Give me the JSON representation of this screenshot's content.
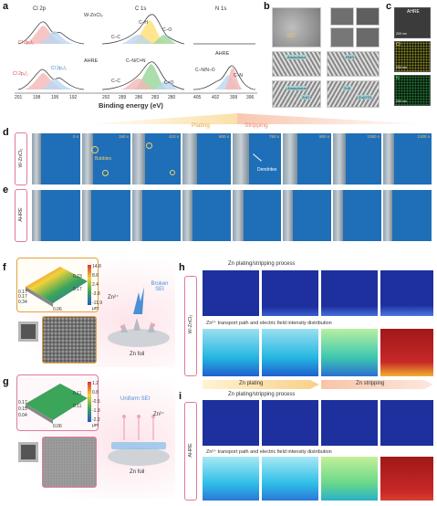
{
  "panels": {
    "a": {
      "letter": "a",
      "subtitles": [
        "Cl 2p",
        "C 1s",
        "N 1s"
      ],
      "sample_top": "W-ZnCl₂",
      "sample_bottom": "AHRE",
      "peaks_cl_top": [
        "Cl 2p₃/₂"
      ],
      "peaks_cl_bottom": [
        "Cl 2p₁/₂",
        "Cl 2p₃/₂"
      ],
      "peaks_c_top": [
        "C–C",
        "C–H",
        "C–O"
      ],
      "peaks_c_bottom": [
        "C–N/C=N",
        "C–C",
        "C=O"
      ],
      "peaks_n": [
        "C–N/N–O",
        "C–N"
      ],
      "ticks_cl": [
        "201",
        "198",
        "195",
        "192"
      ],
      "ticks_c": [
        "292",
        "289",
        "286",
        "283",
        "280"
      ],
      "ticks_n": [
        "405",
        "402",
        "399",
        "396"
      ],
      "xlabel": "Binding energy (eV)"
    },
    "b": {
      "letter": "b",
      "sei_label": "SEI",
      "boxes": [
        "Amorphous",
        "RMS",
        "Amorphous",
        "ZnS",
        "ZnO",
        "Zn(OTf)"
      ]
    },
    "c": {
      "letter": "c",
      "title": "AHRE",
      "scales": [
        "200 nm",
        "200 nm",
        "200 nm"
      ],
      "elements": [
        "Cl",
        "N"
      ]
    },
    "d": {
      "letter": "d",
      "side": "W-ZnCl₂",
      "plating": "Plating",
      "stripping": "Stripping",
      "times": [
        "0 s",
        "150 s",
        "410 s",
        "600 s",
        "750 s",
        "900 s",
        "1050 s",
        "1200 s"
      ],
      "bubbles": "Bubbles",
      "dendrites": "Dendrites"
    },
    "e": {
      "letter": "e",
      "side": "AHRE"
    },
    "f": {
      "letter": "f",
      "zticks": [
        "14.8",
        "8.6",
        "2.4",
        "-3.8",
        "-11.9"
      ],
      "zunit": "μm",
      "axes": [
        "0.34",
        "0.17",
        "0.23",
        "0.06",
        "0.17",
        "0.17"
      ],
      "ion": "Zn²⁺",
      "sei": "Broken SEI",
      "foil": "Zn foil"
    },
    "g": {
      "letter": "g",
      "zticks": [
        "1.2",
        "0.8",
        "-0.5",
        "-1.3",
        "-2.2"
      ],
      "zunit": "μm",
      "axes": [
        "0.17",
        "0.15",
        "0.11",
        "0.06",
        "0.04",
        "0.11"
      ],
      "ion": "Zn²⁺",
      "sei": "Uniform SEI",
      "foil": "Zn foil"
    },
    "h": {
      "letter": "h",
      "side": "W-ZnCl₂",
      "row1_title": "Zn plating/stripping process",
      "row2_title": "Zn²⁺ transport path and electric field intensity distribution",
      "arrow_left": "Zn plating",
      "arrow_right": "Zn stripping"
    },
    "i": {
      "letter": "i",
      "side": "AHRE",
      "row1_title": "Zn plating/stripping process",
      "row2_title": "Zn²⁺ transport path and electric field intensity distribution"
    }
  },
  "colors": {
    "electrolyte_blue": "#1f6fb8",
    "sim_dark": "#1e2f9e",
    "accent_orange": "#f2a541",
    "accent_pink": "#e07aa0"
  }
}
